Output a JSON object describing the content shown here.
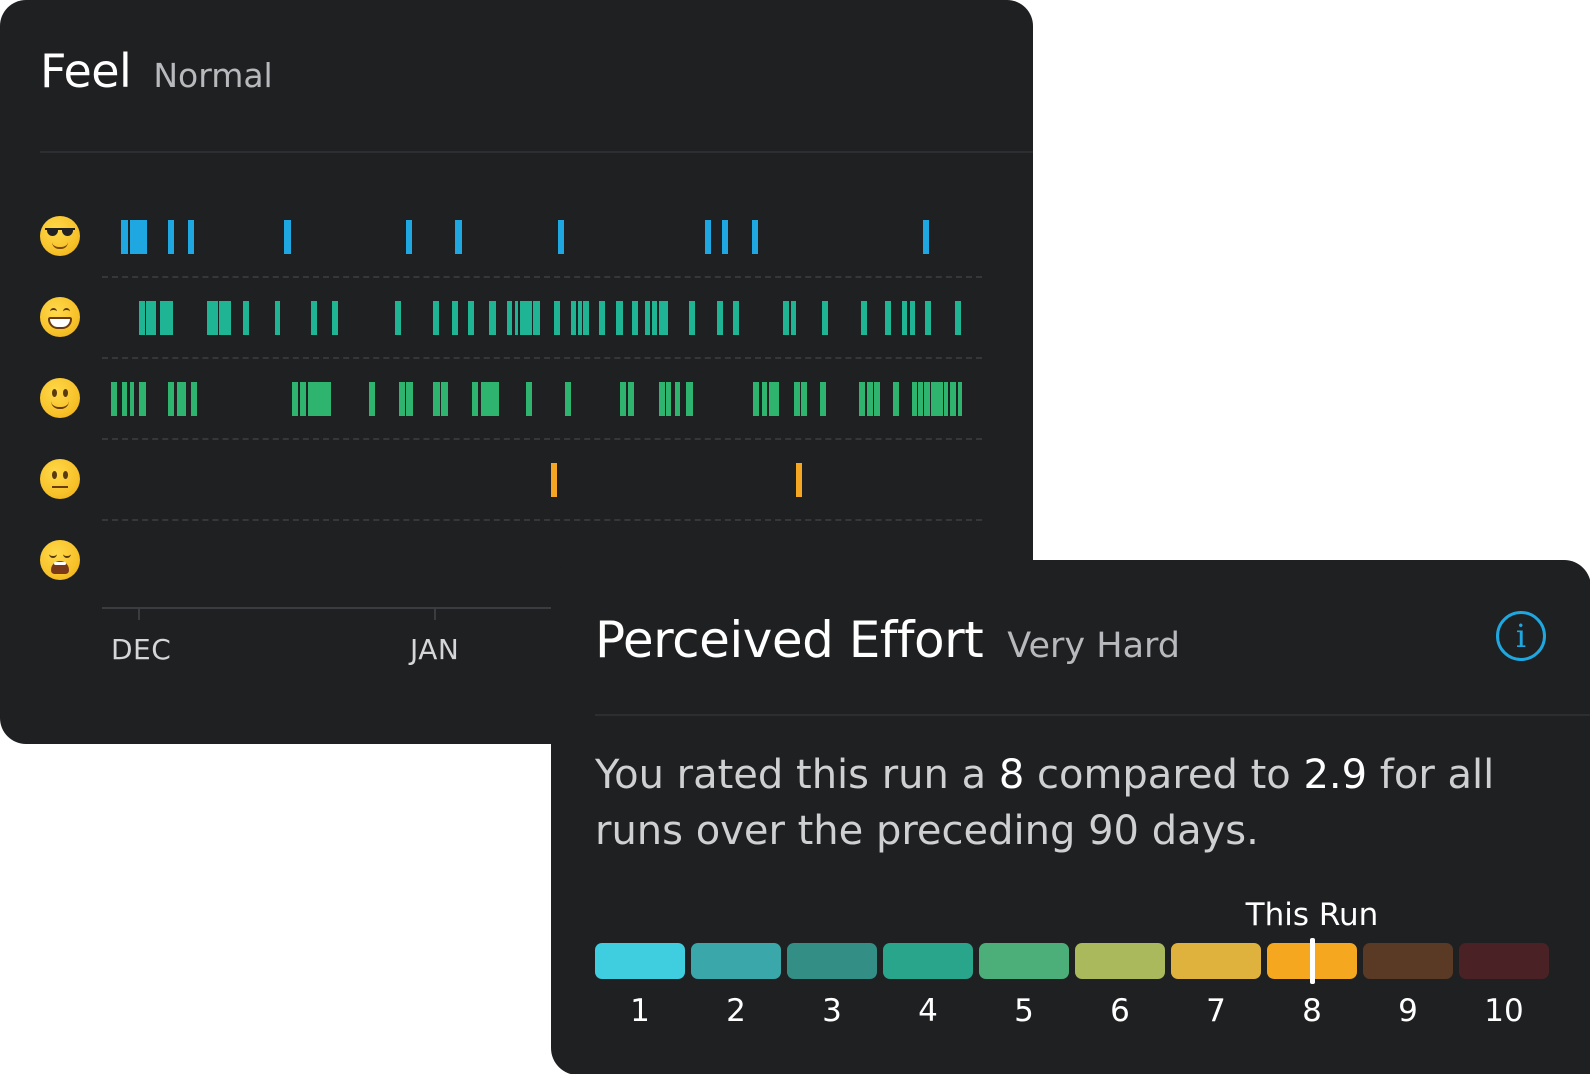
{
  "feel": {
    "title": "Feel",
    "value": "Normal",
    "rows": [
      {
        "icon": "smiling-face-with-sunglasses-icon",
        "glyph": "😎",
        "color": "#1ea7e1"
      },
      {
        "icon": "grinning-face-icon",
        "glyph": "😄",
        "color": "#1fb494"
      },
      {
        "icon": "slightly-smiling-face-icon",
        "glyph": "🙂",
        "color": "#2fb46f"
      },
      {
        "icon": "neutral-face-icon",
        "glyph": "😐",
        "color": "#f5a623"
      },
      {
        "icon": "weary-face-icon",
        "glyph": "😩",
        "color": "#e0654a"
      }
    ],
    "months": [
      "DEC",
      "JAN"
    ]
  },
  "effort": {
    "title": "Perceived Effort",
    "value": "Very Hard",
    "sentence": {
      "part1": "You rated this run a ",
      "rating": "8",
      "part2": " compared to ",
      "average": "2.9",
      "part3": " for all runs over the preceding 90 days."
    },
    "this_run_label": "This Run",
    "this_run_value": 8,
    "scale": [
      {
        "label": "1",
        "color": "#3fcde0"
      },
      {
        "label": "2",
        "color": "#3aa8ab"
      },
      {
        "label": "3",
        "color": "#338e86"
      },
      {
        "label": "4",
        "color": "#28a58b"
      },
      {
        "label": "5",
        "color": "#4caf79"
      },
      {
        "label": "6",
        "color": "#a9b95c"
      },
      {
        "label": "7",
        "color": "#dfb23e"
      },
      {
        "label": "8",
        "color": "#f4a71f"
      },
      {
        "label": "9",
        "color": "#5a3a24"
      },
      {
        "label": "10",
        "color": "#4a2226"
      }
    ]
  }
}
